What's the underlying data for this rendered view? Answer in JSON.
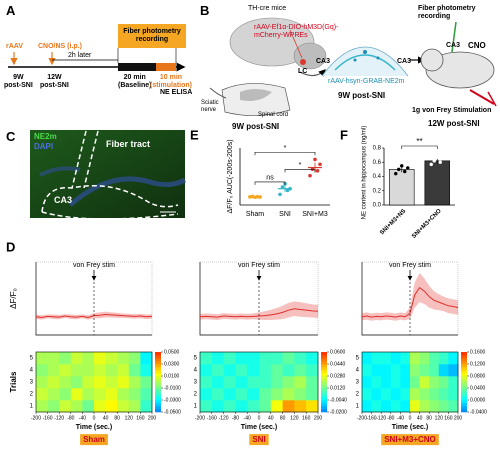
{
  "panel_a": {
    "label": "A",
    "raav": "rAAV",
    "cno": "CNO/NS (i.p.)",
    "interval": "2h later",
    "recording": "Fiber photometry\nrecording",
    "t1": "9W\npost-SNI",
    "t2": "12W\npost-SNI",
    "baseline": "20 min\n(Baseline)",
    "stimulation": "10 min\n(stimulation)",
    "elisa": "NE ELISA"
  },
  "panel_b": {
    "label": "B",
    "mice": "TH-cre mice",
    "virus1": "rAAV-Ef1α-DIO-hM3D(Gq)-\nmCherry-WPREs",
    "lc": "LC",
    "nerve": "Sciatic\nnerve",
    "cord": "Spinal cord",
    "time1": "9W post-SNI",
    "ca3_left": "CA3",
    "ca3_right": "CA3",
    "virus2": "rAAV-hsyn-GRAB-NE2m",
    "time2": "9W post-SNI",
    "recording": "Fiber photometry recording",
    "ca3": "CA3",
    "cno": "CNO",
    "stim": "1g von Frey Stimulation",
    "time3": "12W post-SNI"
  },
  "panel_c": {
    "label": "C",
    "ne2m": "NE2m",
    "dapi": "DAPI",
    "tract": "Fiber tract",
    "ca3": "CA3"
  },
  "chart_data": [
    {
      "type": "dot",
      "panel": "E",
      "ylabel": "ΔF/F₀ AUC(-200s-200s)",
      "categories": [
        "Sham",
        "SNI",
        "SNI+M3"
      ],
      "values": [
        0.0,
        1.0,
        3.6
      ],
      "errors": [
        0.05,
        0.4,
        0.6
      ],
      "points": [
        [
          0.0,
          0.05,
          -0.05,
          0.02,
          -0.02
        ],
        [
          0.3,
          1.2,
          1.6,
          0.8,
          1.0
        ],
        [
          2.6,
          3.4,
          4.6,
          3.2,
          4.0
        ]
      ],
      "colors": [
        "#f5a623",
        "#35b6c8",
        "#d9382f"
      ],
      "ylim": [
        -1,
        6
      ],
      "annotations": [
        "ns",
        "*",
        "*"
      ]
    },
    {
      "type": "bar",
      "panel": "F",
      "ylabel": "NE content in hippocampus (ng/ml)",
      "categories": [
        "SNI+M3+NS",
        "SNI+M3+CNO"
      ],
      "values": [
        0.5,
        0.62
      ],
      "errors": [
        0.04,
        0.04
      ],
      "points": [
        [
          0.44,
          0.5,
          0.55,
          0.47,
          0.52
        ],
        [
          0.57,
          0.62,
          0.67,
          0.6,
          0.65
        ]
      ],
      "colors": [
        "#d9d9d9",
        "#3a3a3a"
      ],
      "ylim": [
        0,
        0.8
      ],
      "yticks": [
        {
          "value": 0,
          "label": "0.0"
        },
        {
          "value": 0.2,
          "label": "0.2"
        },
        {
          "value": 0.4,
          "label": "0.4"
        },
        {
          "value": 0.6,
          "label": "0.6"
        },
        {
          "value": 0.8,
          "label": "0.8"
        }
      ],
      "annotation": "**"
    },
    {
      "type": "line",
      "panel": "D",
      "ylabel": "ΔF/F₀",
      "annotation": {
        "text": "von Frey stim",
        "x": 0
      },
      "color": "#e0302a",
      "x": [
        -200,
        -180,
        -160,
        -140,
        -120,
        -100,
        -80,
        -60,
        -40,
        -20,
        0,
        20,
        40,
        60,
        80,
        100,
        120,
        140,
        160,
        180,
        200
      ],
      "values": [
        0.0,
        -0.002,
        0.001,
        0.0,
        -0.001,
        0.002,
        0.0,
        -0.001,
        0.001,
        -0.002,
        0.003,
        0.004,
        0.006,
        0.005,
        0.004,
        0.003,
        0.002,
        0.001,
        0.002,
        0.0,
        0.001
      ],
      "sem": [
        0.006,
        0.006,
        0.005,
        0.006,
        0.006,
        0.005,
        0.006,
        0.006,
        0.005,
        0.006,
        0.007,
        0.008,
        0.008,
        0.007,
        0.007,
        0.006,
        0.006,
        0.006,
        0.006,
        0.006,
        0.006
      ],
      "xlim": [
        -200,
        200
      ],
      "ylim": [
        -0.05,
        0.15
      ]
    },
    {
      "type": "line",
      "annotation": {
        "text": "von Frey stim",
        "x": 0
      },
      "color": "#e0302a",
      "x": [
        -200,
        -180,
        -160,
        -140,
        -120,
        -100,
        -80,
        -60,
        -40,
        -20,
        0,
        20,
        40,
        60,
        80,
        100,
        120,
        140,
        160,
        180,
        200
      ],
      "values": [
        0.0,
        0.001,
        0.0,
        -0.001,
        0.002,
        0.001,
        0.0,
        0.001,
        0.0,
        0.001,
        0.002,
        0.003,
        0.005,
        0.008,
        0.012,
        0.018,
        0.022,
        0.02,
        0.018,
        0.016,
        0.015
      ],
      "sem": [
        0.008,
        0.008,
        0.008,
        0.008,
        0.008,
        0.008,
        0.008,
        0.008,
        0.008,
        0.008,
        0.01,
        0.012,
        0.014,
        0.016,
        0.018,
        0.02,
        0.02,
        0.02,
        0.019,
        0.018,
        0.018
      ],
      "xlim": [
        -200,
        200
      ],
      "ylim": [
        -0.05,
        0.15
      ]
    },
    {
      "type": "line",
      "annotation": {
        "text": "von Frey stim",
        "x": 0
      },
      "color": "#e0302a",
      "x": [
        -200,
        -180,
        -160,
        -140,
        -120,
        -100,
        -80,
        -60,
        -40,
        -20,
        0,
        20,
        40,
        60,
        80,
        100,
        120,
        140,
        160,
        180,
        200
      ],
      "values": [
        0.0,
        0.002,
        -0.001,
        0.001,
        0.0,
        0.002,
        0.001,
        -0.001,
        0.002,
        0.0,
        0.01,
        0.06,
        0.08,
        0.07,
        0.055,
        0.045,
        0.04,
        0.035,
        0.03,
        0.028,
        0.025
      ],
      "sem": [
        0.01,
        0.01,
        0.01,
        0.01,
        0.01,
        0.01,
        0.01,
        0.01,
        0.01,
        0.01,
        0.015,
        0.035,
        0.04,
        0.035,
        0.03,
        0.025,
        0.022,
        0.02,
        0.02,
        0.02,
        0.02
      ],
      "xlim": [
        -200,
        200
      ],
      "ylim": [
        -0.05,
        0.15
      ]
    },
    {
      "type": "heatmap",
      "ylabel": "Trials",
      "xlabel": "Time (sec.)",
      "group": "Sham",
      "xlim": [
        -200,
        200
      ],
      "xticks": [
        -200,
        -160,
        -120,
        -80,
        -40,
        0,
        40,
        80,
        120,
        160,
        200
      ],
      "yticks": [
        1,
        2,
        3,
        4,
        5
      ],
      "values": [
        [
          0.0,
          -0.005,
          0.005,
          0.0,
          -0.01,
          0.01,
          0.015,
          0.005,
          0.0,
          -0.02
        ],
        [
          0.005,
          0.0,
          -0.005,
          0.01,
          0.0,
          0.005,
          0.01,
          0.0,
          -0.005,
          -0.015
        ],
        [
          0.0,
          0.005,
          0.0,
          -0.005,
          0.005,
          0.01,
          0.005,
          0.01,
          0.0,
          -0.01
        ],
        [
          -0.005,
          0.0,
          0.005,
          0.0,
          0.0,
          0.005,
          0.0,
          0.005,
          -0.01,
          -0.025
        ],
        [
          0.0,
          0.0,
          -0.005,
          0.005,
          0.0,
          0.01,
          0.005,
          0.0,
          -0.005,
          -0.03
        ]
      ],
      "clim": [
        -0.05,
        0.05
      ],
      "cticks": [
        {
          "value": 0.05,
          "label": "0.0500"
        },
        {
          "value": 0.03,
          "label": "0.0300"
        },
        {
          "value": 0.01,
          "label": "0.0100"
        },
        {
          "value": -0.01,
          "label": "-0.0100"
        },
        {
          "value": -0.03,
          "label": "-0.0300"
        },
        {
          "value": -0.05,
          "label": "-0.0500"
        }
      ]
    },
    {
      "type": "heatmap",
      "xlabel": "Time (sec.)",
      "group": "SNI",
      "xlim": [
        -200,
        200
      ],
      "xticks": [
        -200,
        -160,
        -120,
        -80,
        -40,
        0,
        40,
        80,
        120,
        160,
        200
      ],
      "yticks": [
        1,
        2,
        3,
        4,
        5
      ],
      "values": [
        [
          0.005,
          0.0,
          0.005,
          0.0,
          0.005,
          0.01,
          0.03,
          0.045,
          0.04,
          0.035
        ],
        [
          0.0,
          0.005,
          0.0,
          0.005,
          0.0,
          0.01,
          0.015,
          0.02,
          0.015,
          0.01
        ],
        [
          0.005,
          0.0,
          0.005,
          0.0,
          0.005,
          0.005,
          0.01,
          0.015,
          0.02,
          0.01
        ],
        [
          0.0,
          0.005,
          0.0,
          0.005,
          0.0,
          0.005,
          0.01,
          0.005,
          0.01,
          0.005
        ],
        [
          0.005,
          0.0,
          0.005,
          0.0,
          0.0,
          0.005,
          0.005,
          0.01,
          0.005,
          0.0
        ]
      ],
      "clim": [
        -0.02,
        0.06
      ],
      "cticks": [
        {
          "value": 0.06,
          "label": "0.0600"
        },
        {
          "value": 0.044,
          "label": "0.0440"
        },
        {
          "value": 0.028,
          "label": "0.0280"
        },
        {
          "value": 0.012,
          "label": "0.0120"
        },
        {
          "value": -0.004,
          "label": "-0.0040"
        },
        {
          "value": -0.02,
          "label": "-0.0200"
        }
      ]
    },
    {
      "type": "heatmap",
      "xlabel": "Time (sec.)",
      "group": "SNI+M3+CNO",
      "xlim": [
        -200,
        200
      ],
      "xticks": [
        -200,
        -160,
        -120,
        -80,
        -40,
        0,
        40,
        80,
        120,
        160,
        200
      ],
      "yticks": [
        1,
        2,
        3,
        4,
        5
      ],
      "values": [
        [
          0.0,
          0.01,
          0.0,
          0.01,
          0.0,
          0.08,
          0.06,
          0.05,
          0.04,
          0.03
        ],
        [
          0.01,
          0.0,
          0.01,
          0.0,
          0.01,
          0.06,
          0.05,
          0.04,
          0.03,
          0.02
        ],
        [
          0.0,
          0.01,
          0.0,
          0.01,
          0.0,
          0.04,
          0.07,
          0.05,
          0.04,
          0.02
        ],
        [
          0.01,
          0.0,
          0.0,
          0.01,
          0.0,
          0.05,
          0.04,
          0.03,
          -0.01,
          -0.02
        ],
        [
          0.0,
          0.01,
          0.01,
          0.0,
          0.01,
          0.06,
          0.05,
          0.03,
          0.02,
          0.0
        ]
      ],
      "clim": [
        -0.04,
        0.16
      ],
      "cticks": [
        {
          "value": 0.16,
          "label": "0.1600"
        },
        {
          "value": 0.12,
          "label": "0.1200"
        },
        {
          "value": 0.08,
          "label": "0.0800"
        },
        {
          "value": 0.04,
          "label": "0.0400"
        },
        {
          "value": 0,
          "label": "0.0000"
        },
        {
          "value": -0.04,
          "label": "-0.0400"
        }
      ]
    }
  ]
}
